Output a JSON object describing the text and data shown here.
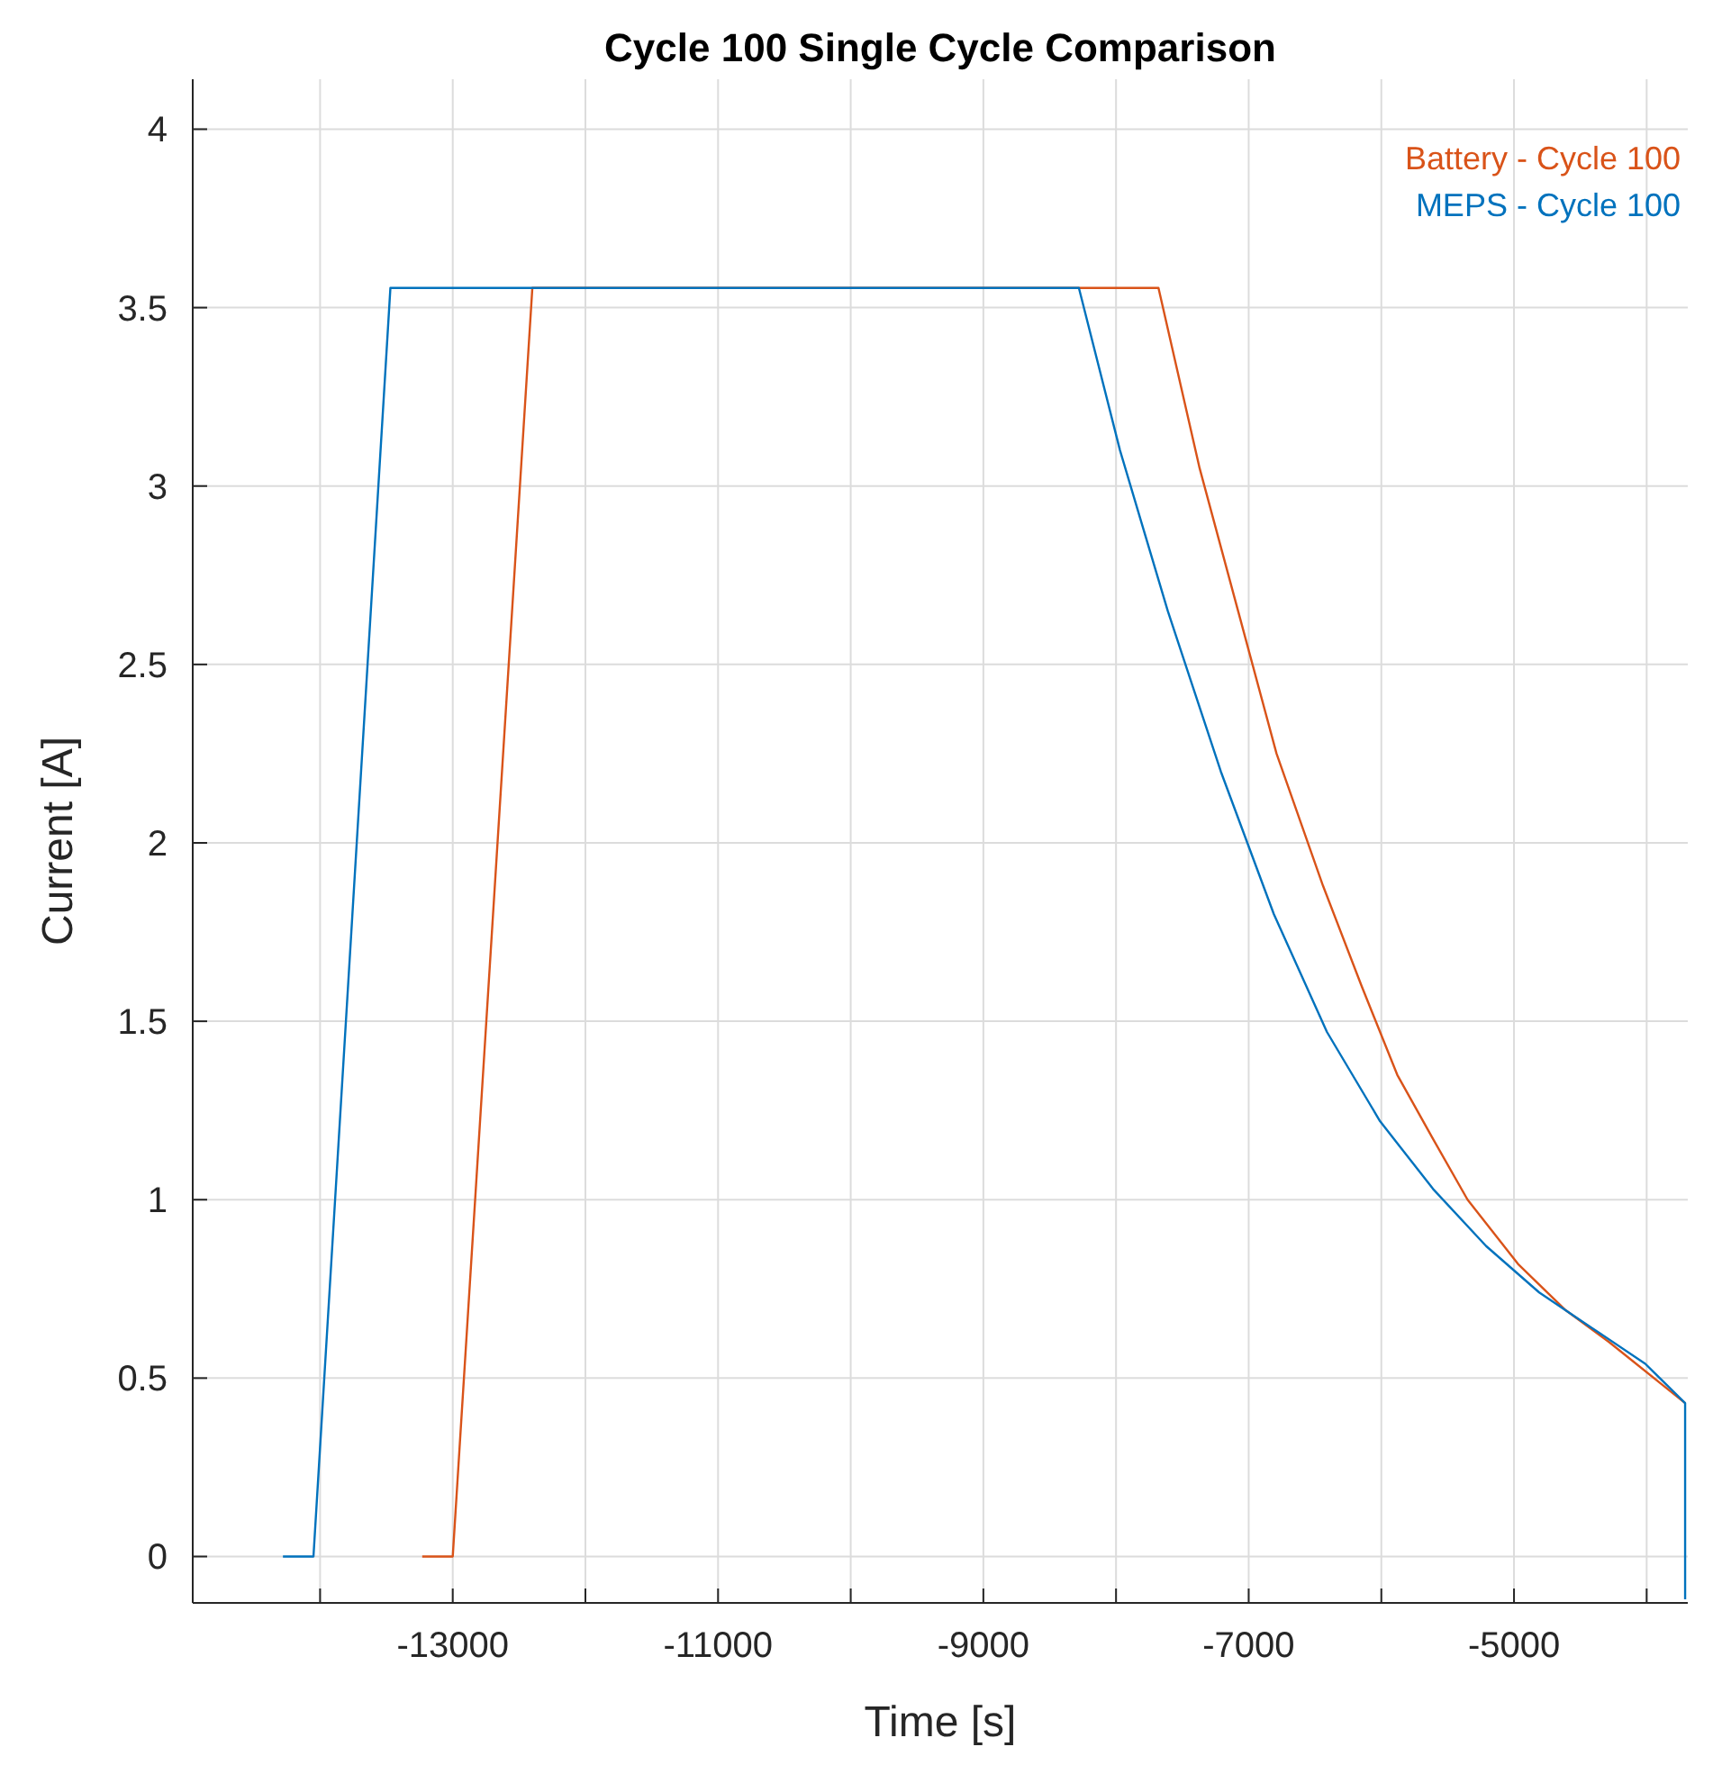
{
  "chart_data": {
    "type": "line",
    "title": "Cycle 100 Single Cycle Comparison",
    "xlabel": "Time [s]",
    "ylabel": "Current [A]",
    "xlim": [
      -14960,
      -3690
    ],
    "ylim": [
      -0.13,
      4.14
    ],
    "xticks": [
      {
        "value": -14000,
        "label": null
      },
      -13000,
      {
        "value": -12000,
        "label": null
      },
      -11000,
      {
        "value": -10000,
        "label": null
      },
      -9000,
      {
        "value": -8000,
        "label": null
      },
      -7000,
      {
        "value": -6000,
        "label": null
      },
      -5000,
      {
        "value": -4000,
        "label": null
      }
    ],
    "yticks": [
      0,
      0.5,
      1,
      1.5,
      2,
      2.5,
      3,
      3.5,
      4
    ],
    "grid": true,
    "legend": "top right",
    "series": [
      {
        "name": "Battery - Cycle 100",
        "color": "#d95319",
        "x": [
          -13230,
          -13000,
          -12400,
          -7680,
          -7370,
          -7080,
          -6790,
          -6440,
          -6150,
          -5880,
          -5610,
          -5350,
          -4970,
          -4610,
          -4280,
          -3710
        ],
        "values": [
          0,
          0,
          3.555,
          3.555,
          3.05,
          2.65,
          2.25,
          1.88,
          1.6,
          1.35,
          1.17,
          1.0,
          0.82,
          0.69,
          0.6,
          0.43
        ]
      },
      {
        "name": "MEPS - Cycle 100",
        "color": "#0072bd",
        "x": [
          -14280,
          -14050,
          -13470,
          -8280,
          -7970,
          -7610,
          -7210,
          -6810,
          -6410,
          -6010,
          -5610,
          -5210,
          -4810,
          -4410,
          -4010,
          -3710,
          -3710
        ],
        "values": [
          0,
          0,
          3.555,
          3.555,
          3.1,
          2.65,
          2.2,
          1.8,
          1.47,
          1.22,
          1.03,
          0.87,
          0.74,
          0.64,
          0.54,
          0.43,
          -0.12
        ]
      }
    ]
  }
}
